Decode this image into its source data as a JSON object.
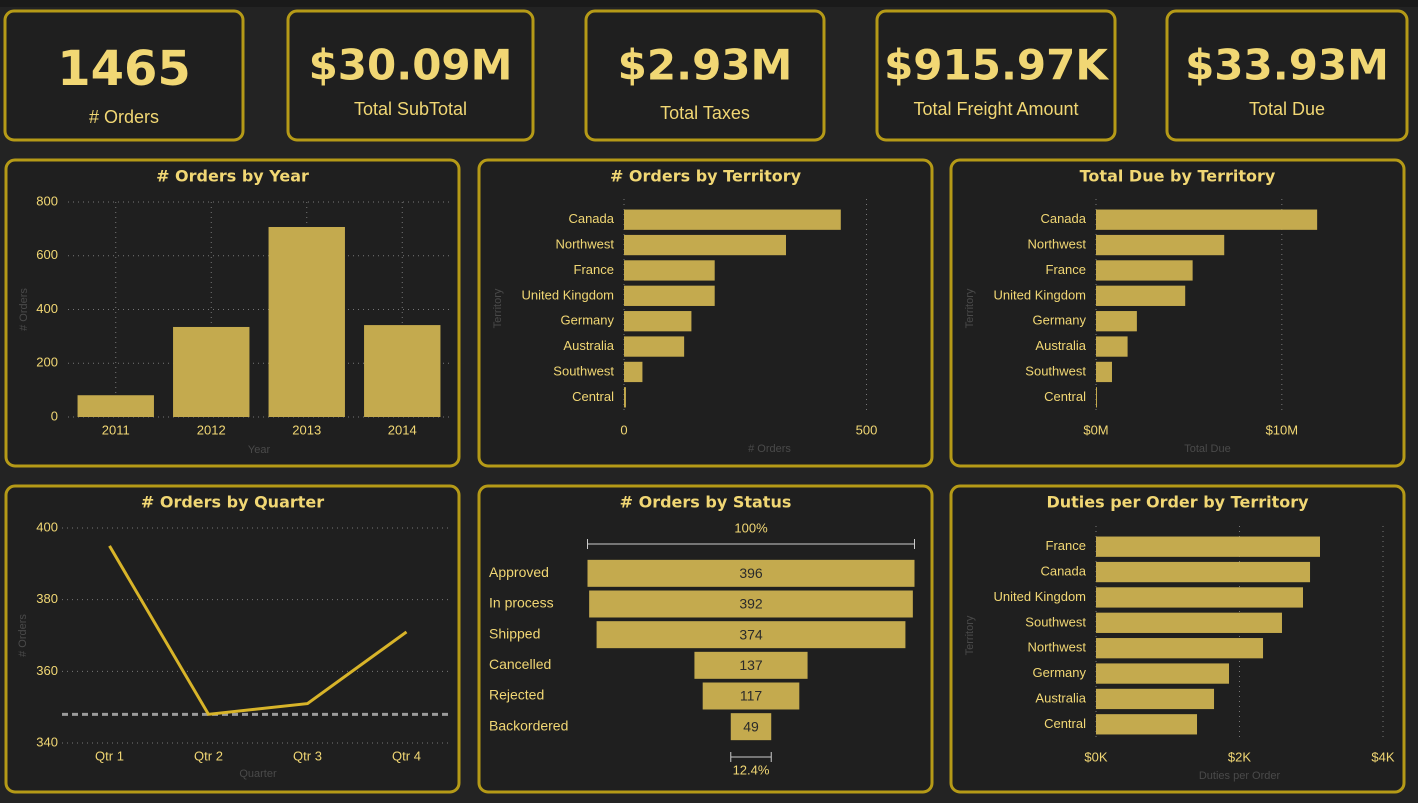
{
  "kpis": [
    {
      "value": "1465",
      "label": "# Orders"
    },
    {
      "value": "$30.09M",
      "label": "Total SubTotal"
    },
    {
      "value": "$2.93M",
      "label": "Total Taxes"
    },
    {
      "value": "$915.97K",
      "label": "Total Freight Amount"
    },
    {
      "value": "$33.93M",
      "label": "Total Due"
    }
  ],
  "chart_data": [
    {
      "type": "bar",
      "title": "# Orders by Year",
      "x_label": "Year",
      "y_label": "# Orders",
      "categories": [
        "2011",
        "2012",
        "2013",
        "2014"
      ],
      "values": [
        81,
        335,
        707,
        342
      ],
      "color": "#c4aa4e",
      "ylim": [
        0,
        800
      ],
      "yticks": [
        0,
        200,
        400,
        600,
        800
      ],
      "grid": true
    },
    {
      "type": "hbar",
      "title": "# Orders by Territory",
      "x_label": "# Orders",
      "y_label": "Territory",
      "categories": [
        "Canada",
        "Northwest",
        "France",
        "United Kingdom",
        "Germany",
        "Australia",
        "Southwest",
        "Central"
      ],
      "values": [
        447,
        334,
        187,
        187,
        139,
        124,
        38,
        4
      ],
      "color": "#c4aa4e",
      "xlim": [
        0,
        600
      ],
      "xticks": [
        0,
        500
      ],
      "grid": true
    },
    {
      "type": "hbar",
      "title": "Total Due by Territory",
      "x_label": "Total Due",
      "y_label": "Territory",
      "categories": [
        "Canada",
        "Northwest",
        "France",
        "United Kingdom",
        "Germany",
        "Australia",
        "Southwest",
        "Central"
      ],
      "values": [
        11900000,
        6900000,
        5200000,
        4800000,
        2200000,
        1700000,
        860000,
        50000
      ],
      "color": "#c4aa4e",
      "xlim": [
        0,
        12000000
      ],
      "xticks": [
        {
          "value": 0,
          "label": "$0M"
        },
        {
          "value": 10000000,
          "label": "$10M"
        }
      ],
      "grid": true
    },
    {
      "type": "line",
      "title": "# Orders by Quarter",
      "x_label": "Quarter",
      "y_label": "# Orders",
      "categories": [
        "Qtr 1",
        "Qtr 2",
        "Qtr 3",
        "Qtr 4"
      ],
      "values": [
        395,
        348,
        351,
        371
      ],
      "color": "#d8b429",
      "reference_line": 348,
      "ylim": [
        340,
        400
      ],
      "yticks": [
        340,
        360,
        380,
        400
      ],
      "grid": true
    },
    {
      "type": "funnel",
      "title": "# Orders by Status",
      "categories": [
        "Approved",
        "In process",
        "Shipped",
        "Cancelled",
        "Rejected",
        "Backordered"
      ],
      "values": [
        396,
        392,
        374,
        137,
        117,
        49
      ],
      "color": "#c4aa4e",
      "top_label": "100%",
      "bottom_label": "12.4%"
    },
    {
      "type": "hbar",
      "title": "Duties per Order by Territory",
      "x_label": "Duties per Order",
      "y_label": "Territory",
      "categories": [
        "France",
        "Canada",
        "United Kingdom",
        "Southwest",
        "Northwest",
        "Germany",
        "Australia",
        "Central"
      ],
      "values": [
        3122,
        2983,
        2885,
        2592,
        2328,
        1854,
        1645,
        1408
      ],
      "color": "#c4aa4e",
      "xlim": [
        0,
        4000
      ],
      "xticks": [
        {
          "value": 0,
          "label": "$0K"
        },
        {
          "value": 2000,
          "label": "$2K"
        },
        {
          "value": 4000,
          "label": "$4K"
        }
      ],
      "grid": true
    }
  ]
}
